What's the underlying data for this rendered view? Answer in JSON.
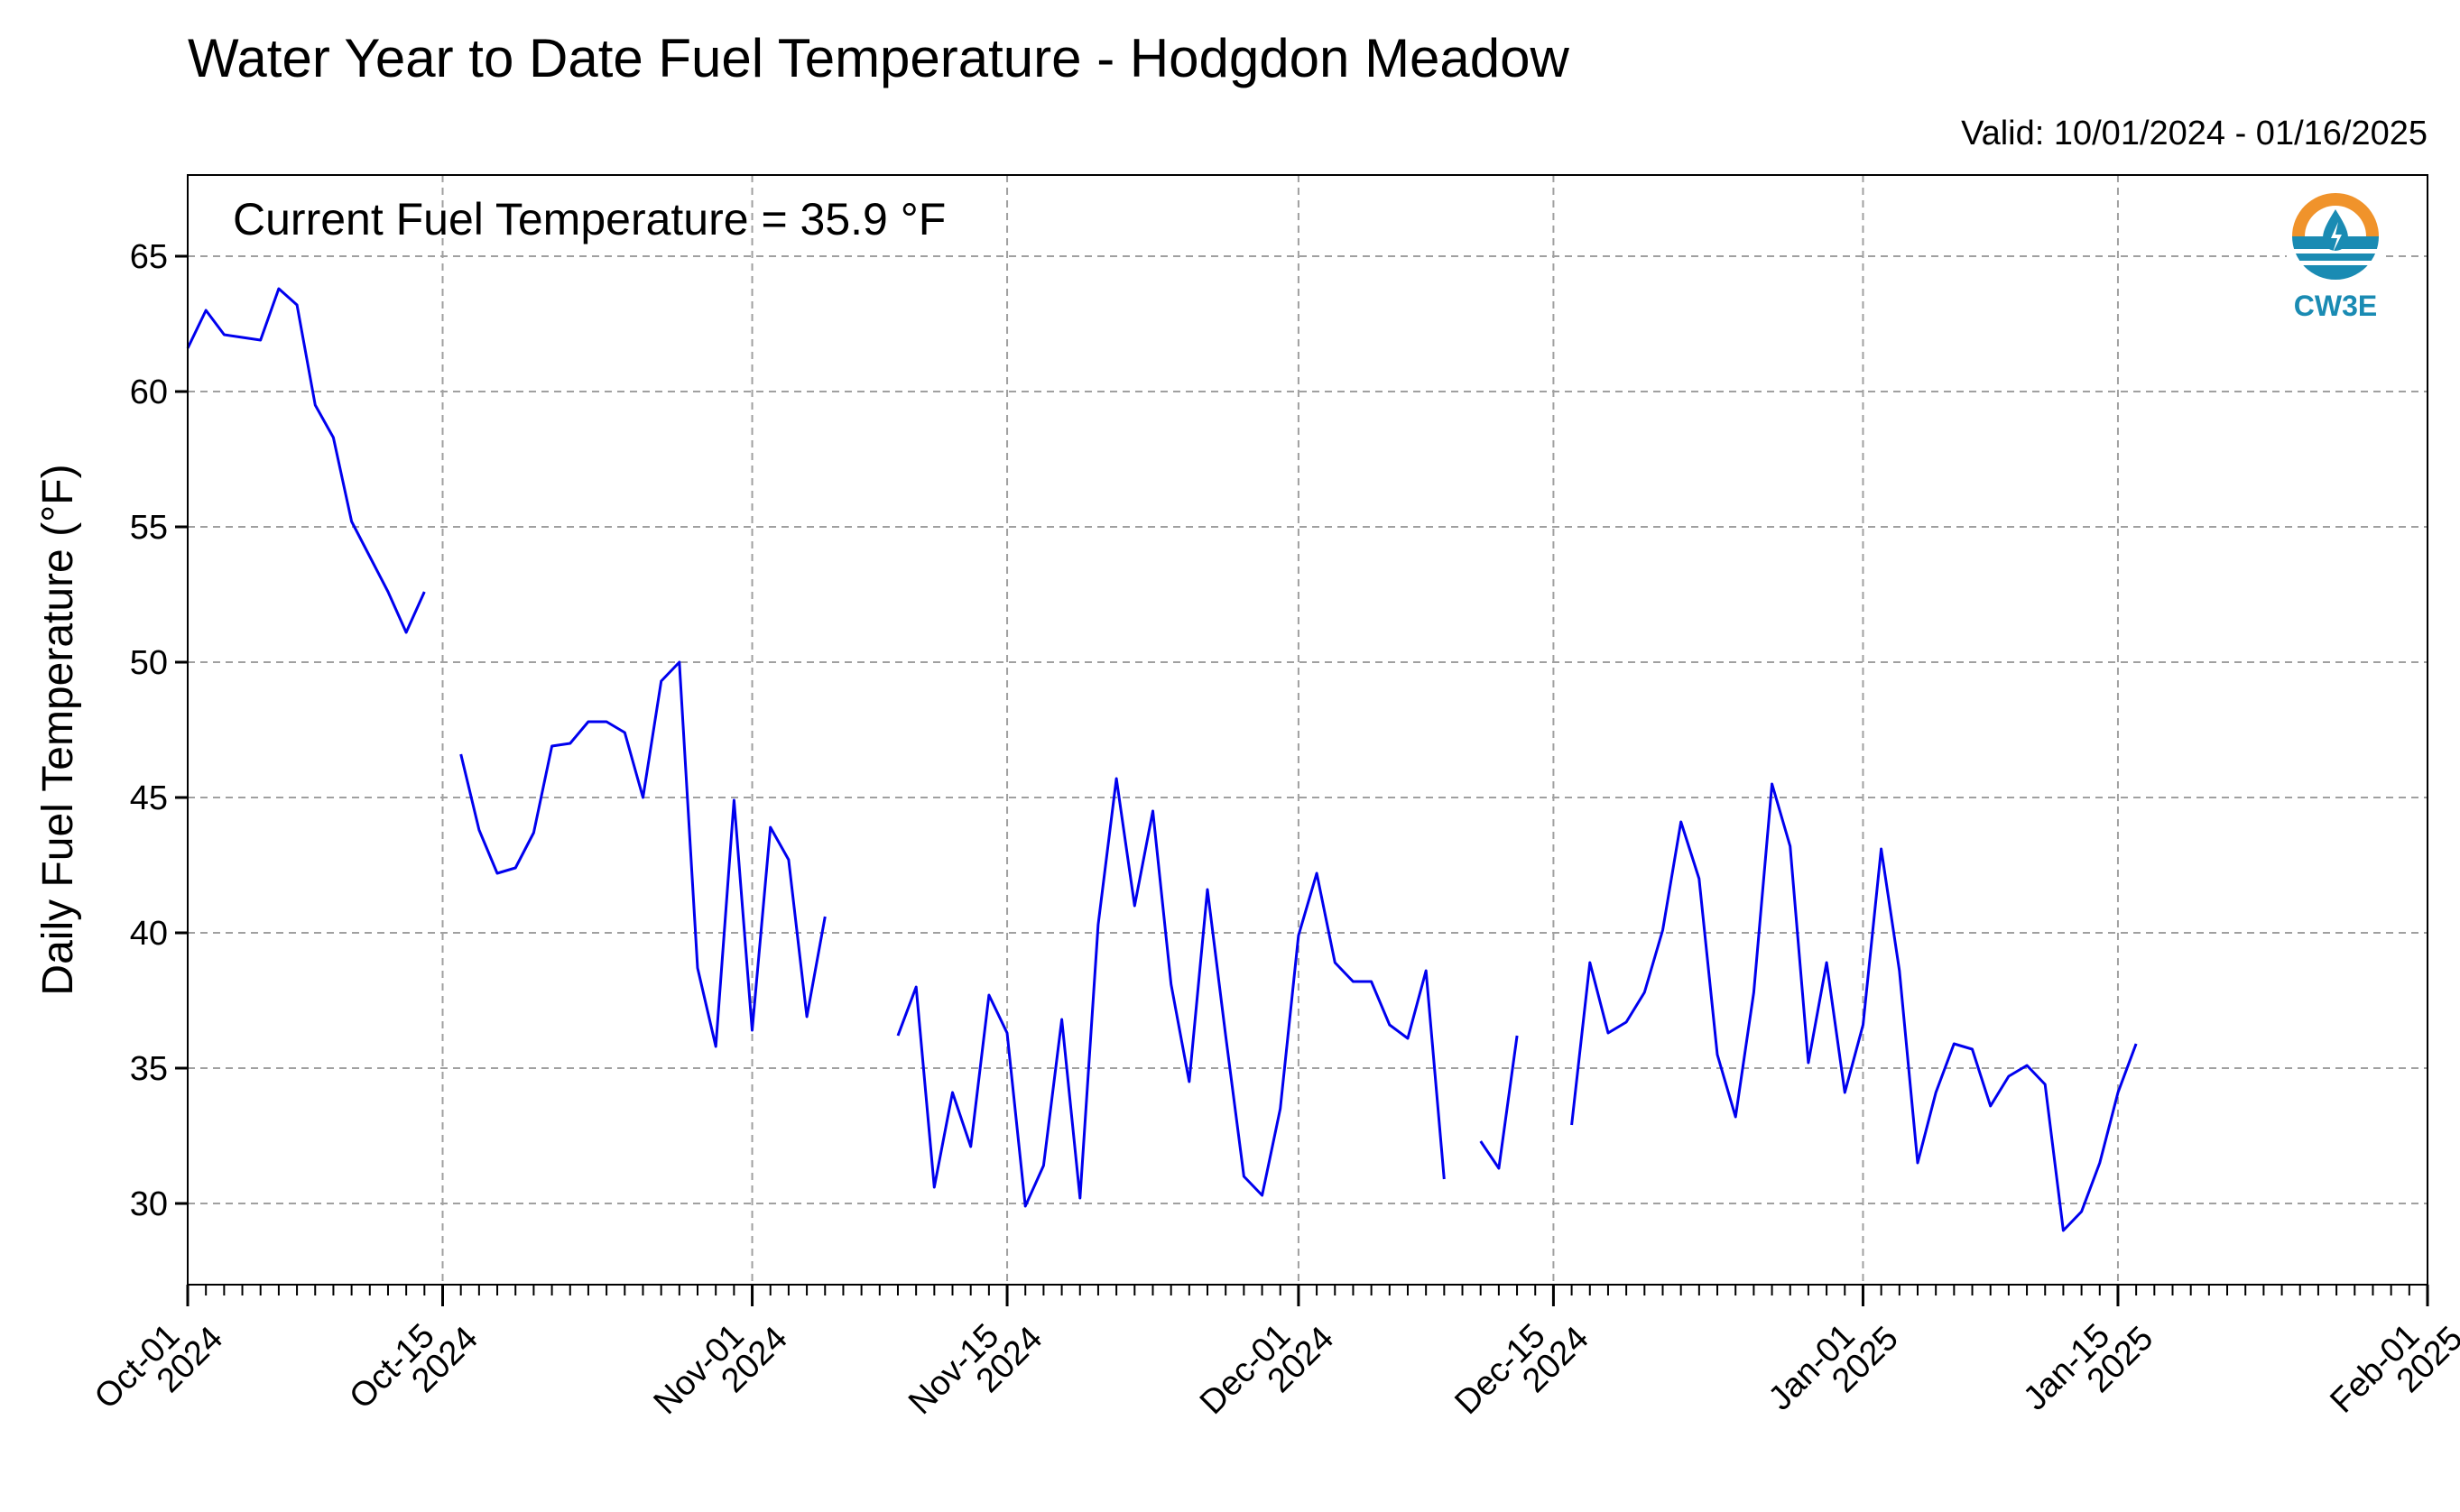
{
  "chart_data": {
    "type": "line",
    "title": "Water Year to Date Fuel Temperature - Hodgdon Meadow",
    "subtitle": "Valid: 10/01/2024 - 01/16/2025",
    "annotation": "Current Fuel Temperature = 35.9  °F",
    "ylabel": "Daily Fuel Temperature (°F)",
    "xlabel": "",
    "ylim": [
      27,
      68
    ],
    "xlim": [
      "2024-10-01",
      "2025-02-01"
    ],
    "grid": true,
    "line_color": "#0000ee",
    "yticks": [
      30,
      35,
      40,
      45,
      50,
      55,
      60,
      65
    ],
    "xticks": [
      {
        "date": "2024-10-01",
        "line1": "Oct-01",
        "line2": "2024"
      },
      {
        "date": "2024-10-15",
        "line1": "Oct-15",
        "line2": "2024"
      },
      {
        "date": "2024-11-01",
        "line1": "Nov-01",
        "line2": "2024"
      },
      {
        "date": "2024-11-15",
        "line1": "Nov-15",
        "line2": "2024"
      },
      {
        "date": "2024-12-01",
        "line1": "Dec-01",
        "line2": "2024"
      },
      {
        "date": "2024-12-15",
        "line1": "Dec-15",
        "line2": "2024"
      },
      {
        "date": "2025-01-01",
        "line1": "Jan-01",
        "line2": "2025"
      },
      {
        "date": "2025-01-15",
        "line1": "Jan-15",
        "line2": "2025"
      },
      {
        "date": "2025-02-01",
        "line1": "Feb-01",
        "line2": "2025"
      }
    ],
    "series": [
      {
        "segments": [
          [
            [
              "2024-10-01",
              61.6
            ],
            [
              "2024-10-02",
              63.0
            ],
            [
              "2024-10-03",
              62.1
            ],
            [
              "2024-10-04",
              62.0
            ],
            [
              "2024-10-05",
              61.9
            ],
            [
              "2024-10-06",
              63.8
            ],
            [
              "2024-10-07",
              63.2
            ],
            [
              "2024-10-08",
              59.5
            ],
            [
              "2024-10-09",
              58.3
            ],
            [
              "2024-10-10",
              55.2
            ],
            [
              "2024-10-11",
              53.9
            ],
            [
              "2024-10-12",
              52.6
            ],
            [
              "2024-10-13",
              51.1
            ],
            [
              "2024-10-14",
              52.6
            ]
          ],
          [
            [
              "2024-10-16",
              46.6
            ],
            [
              "2024-10-17",
              43.8
            ],
            [
              "2024-10-18",
              42.2
            ],
            [
              "2024-10-19",
              42.4
            ],
            [
              "2024-10-20",
              43.7
            ],
            [
              "2024-10-21",
              46.9
            ],
            [
              "2024-10-22",
              47.0
            ],
            [
              "2024-10-23",
              47.8
            ],
            [
              "2024-10-24",
              47.8
            ],
            [
              "2024-10-25",
              47.4
            ],
            [
              "2024-10-26",
              45.0
            ],
            [
              "2024-10-27",
              49.3
            ],
            [
              "2024-10-28",
              50.0
            ],
            [
              "2024-10-29",
              38.7
            ],
            [
              "2024-10-30",
              35.8
            ],
            [
              "2024-10-31",
              44.9
            ],
            [
              "2024-11-01",
              36.4
            ],
            [
              "2024-11-02",
              43.9
            ],
            [
              "2024-11-03",
              42.7
            ],
            [
              "2024-11-04",
              36.9
            ],
            [
              "2024-11-05",
              40.6
            ]
          ],
          [
            [
              "2024-11-09",
              36.2
            ],
            [
              "2024-11-10",
              38.0
            ],
            [
              "2024-11-11",
              30.6
            ],
            [
              "2024-11-12",
              34.1
            ],
            [
              "2024-11-13",
              32.1
            ],
            [
              "2024-11-14",
              37.7
            ],
            [
              "2024-11-15",
              36.3
            ],
            [
              "2024-11-16",
              29.9
            ],
            [
              "2024-11-17",
              31.4
            ],
            [
              "2024-11-18",
              36.8
            ],
            [
              "2024-11-19",
              30.2
            ],
            [
              "2024-11-20",
              40.3
            ],
            [
              "2024-11-21",
              45.7
            ],
            [
              "2024-11-22",
              41.0
            ],
            [
              "2024-11-23",
              44.5
            ],
            [
              "2024-11-24",
              38.1
            ],
            [
              "2024-11-25",
              34.5
            ],
            [
              "2024-11-26",
              41.6
            ],
            [
              "2024-11-27",
              36.2
            ],
            [
              "2024-11-28",
              31.0
            ],
            [
              "2024-11-29",
              30.3
            ],
            [
              "2024-11-30",
              33.5
            ],
            [
              "2024-12-01",
              39.9
            ],
            [
              "2024-12-02",
              42.2
            ],
            [
              "2024-12-03",
              38.9
            ],
            [
              "2024-12-04",
              38.2
            ],
            [
              "2024-12-05",
              38.2
            ],
            [
              "2024-12-06",
              36.6
            ],
            [
              "2024-12-07",
              36.1
            ],
            [
              "2024-12-08",
              38.6
            ],
            [
              "2024-12-09",
              30.9
            ]
          ],
          [
            [
              "2024-12-11",
              32.3
            ],
            [
              "2024-12-12",
              31.3
            ],
            [
              "2024-12-13",
              36.2
            ]
          ],
          [
            [
              "2024-12-16",
              32.9
            ],
            [
              "2024-12-17",
              38.9
            ],
            [
              "2024-12-18",
              36.3
            ],
            [
              "2024-12-19",
              36.7
            ],
            [
              "2024-12-20",
              37.8
            ],
            [
              "2024-12-21",
              40.1
            ],
            [
              "2024-12-22",
              44.1
            ],
            [
              "2024-12-23",
              42.0
            ],
            [
              "2024-12-24",
              35.5
            ],
            [
              "2024-12-25",
              33.2
            ],
            [
              "2024-12-26",
              37.8
            ],
            [
              "2024-12-27",
              45.5
            ],
            [
              "2024-12-28",
              43.2
            ],
            [
              "2024-12-29",
              35.2
            ],
            [
              "2024-12-30",
              38.9
            ],
            [
              "2024-12-31",
              34.1
            ],
            [
              "2025-01-01",
              36.6
            ],
            [
              "2025-01-02",
              43.1
            ],
            [
              "2025-01-03",
              38.6
            ],
            [
              "2025-01-04",
              31.5
            ],
            [
              "2025-01-05",
              34.1
            ],
            [
              "2025-01-06",
              35.9
            ],
            [
              "2025-01-07",
              35.7
            ],
            [
              "2025-01-08",
              33.6
            ],
            [
              "2025-01-09",
              34.7
            ],
            [
              "2025-01-10",
              35.1
            ],
            [
              "2025-01-11",
              34.4
            ],
            [
              "2025-01-12",
              29.0
            ],
            [
              "2025-01-13",
              29.7
            ],
            [
              "2025-01-14",
              31.5
            ],
            [
              "2025-01-15",
              34.1
            ],
            [
              "2025-01-16",
              35.9
            ]
          ]
        ]
      }
    ]
  },
  "logo": {
    "text": "CW3E",
    "colors": {
      "orange": "#f0932b",
      "blue": "#1a8bb3",
      "dark_blue": "#136f94"
    }
  }
}
